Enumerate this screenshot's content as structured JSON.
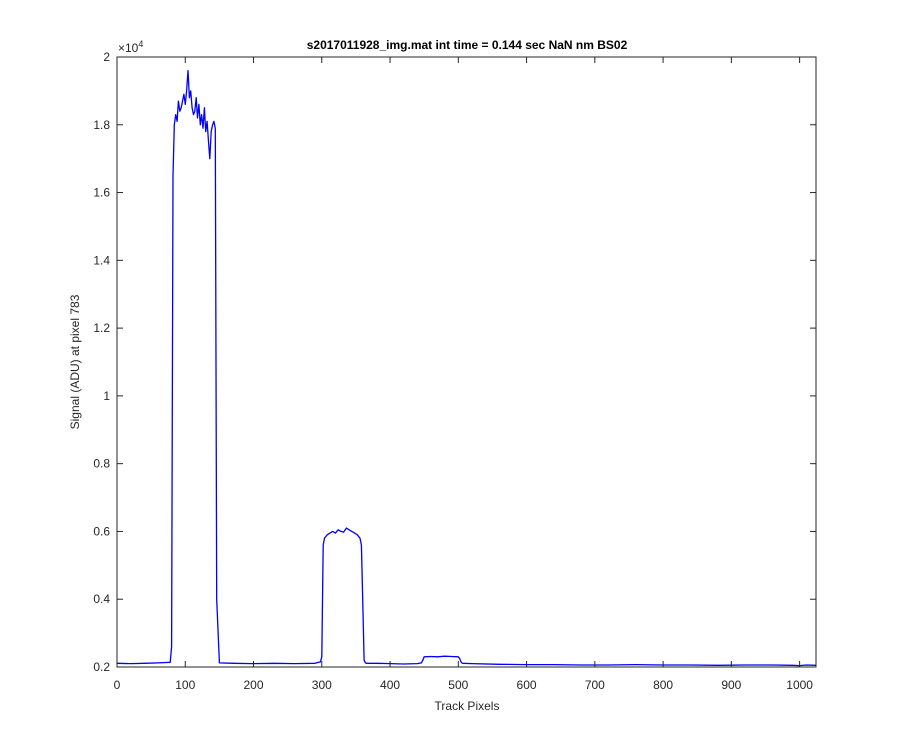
{
  "chart_data": {
    "type": "line",
    "title": "s2017011928_img.mat int time = 0.144 sec  NaN nm BS02",
    "xlabel": "Track Pixels",
    "ylabel": "Signal (ADU) at pixel 783",
    "xlim": [
      0,
      1024
    ],
    "ylim": [
      2000,
      20000
    ],
    "exponent_label": "×10",
    "exponent_power": "4",
    "xticks": [
      0,
      100,
      200,
      300,
      400,
      500,
      600,
      700,
      800,
      900,
      1000
    ],
    "xtick_labels": [
      "0",
      "100",
      "200",
      "300",
      "400",
      "500",
      "600",
      "700",
      "800",
      "900",
      "1000"
    ],
    "yticks": [
      2000,
      4000,
      6000,
      8000,
      10000,
      12000,
      14000,
      16000,
      18000,
      20000
    ],
    "ytick_labels": [
      "0.2",
      "0.4",
      "0.6",
      "0.8",
      "1",
      "1.2",
      "1.4",
      "1.6",
      "1.8",
      "2"
    ],
    "grid": false,
    "series": [
      {
        "color": "#0000ff",
        "x": [
          0,
          20,
          40,
          60,
          78,
          80,
          82,
          84,
          86,
          88,
          90,
          92,
          94,
          96,
          98,
          100,
          102,
          104,
          106,
          108,
          110,
          112,
          114,
          116,
          118,
          120,
          122,
          124,
          126,
          128,
          130,
          132,
          134,
          136,
          138,
          140,
          142,
          144,
          146,
          150,
          170,
          200,
          230,
          260,
          290,
          298,
          300,
          302,
          304,
          306,
          308,
          312,
          316,
          320,
          324,
          328,
          332,
          336,
          340,
          344,
          348,
          352,
          356,
          358,
          360,
          362,
          364,
          366,
          380,
          400,
          420,
          440,
          446,
          448,
          450,
          460,
          470,
          480,
          490,
          500,
          502,
          504,
          506,
          520,
          560,
          600,
          640,
          680,
          720,
          760,
          800,
          840,
          880,
          920,
          960,
          990,
          1000,
          1010,
          1024
        ],
        "y": [
          2110,
          2100,
          2110,
          2120,
          2140,
          2600,
          16500,
          18000,
          18300,
          18100,
          18700,
          18400,
          18500,
          18700,
          18900,
          18600,
          19000,
          19600,
          18800,
          19000,
          18500,
          18300,
          18400,
          18800,
          18200,
          18600,
          18000,
          18300,
          17900,
          18500,
          17800,
          18100,
          17500,
          17000,
          17800,
          18000,
          18100,
          17900,
          4000,
          2120,
          2110,
          2100,
          2110,
          2100,
          2110,
          2150,
          2300,
          5600,
          5800,
          5850,
          5900,
          5950,
          6000,
          5950,
          6050,
          6000,
          5980,
          6100,
          6050,
          6000,
          5950,
          5900,
          5800,
          5600,
          4000,
          2200,
          2120,
          2110,
          2110,
          2100,
          2090,
          2100,
          2120,
          2200,
          2300,
          2310,
          2300,
          2320,
          2310,
          2300,
          2250,
          2150,
          2110,
          2100,
          2080,
          2070,
          2070,
          2060,
          2060,
          2070,
          2060,
          2060,
          2050,
          2060,
          2060,
          2050,
          2040,
          2060,
          2050
        ]
      }
    ]
  }
}
